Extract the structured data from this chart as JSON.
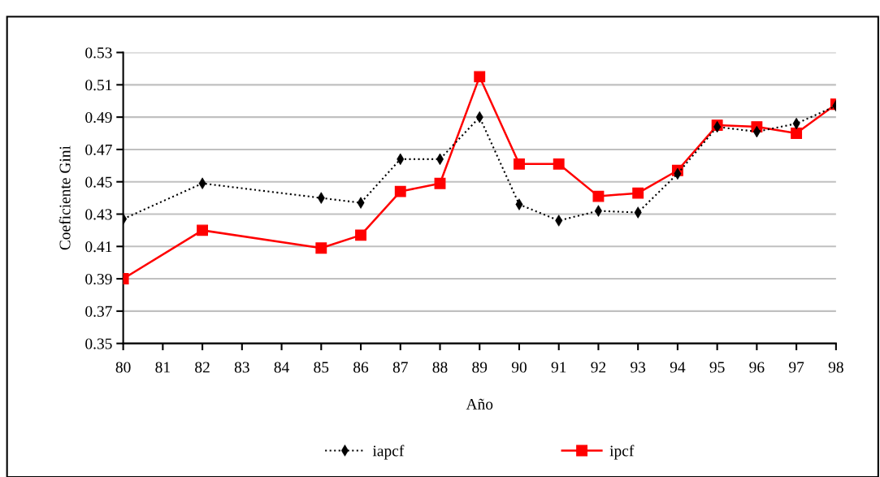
{
  "chart_data": {
    "type": "line",
    "xlabel": "Año",
    "ylabel": "Coeficiente Gini",
    "xlim": [
      80,
      98
    ],
    "xticks": [
      80,
      81,
      82,
      83,
      84,
      85,
      86,
      87,
      88,
      89,
      90,
      91,
      92,
      93,
      94,
      95,
      96,
      97,
      98
    ],
    "ylim": [
      0.35,
      0.53
    ],
    "yticks": [
      0.35,
      0.37,
      0.39,
      0.41,
      0.43,
      0.45,
      0.47,
      0.49,
      0.51,
      0.53
    ],
    "grid": "y",
    "legend": "bottom",
    "series": [
      {
        "name": "iapcf",
        "color": "#000000",
        "marker": "diamond",
        "line_style": "dotted",
        "x": [
          80,
          82,
          85,
          86,
          87,
          88,
          89,
          90,
          91,
          92,
          93,
          94,
          95,
          96,
          97,
          98
        ],
        "values": [
          0.427,
          0.449,
          0.44,
          0.437,
          0.464,
          0.464,
          0.49,
          0.436,
          0.426,
          0.432,
          0.431,
          0.455,
          0.484,
          0.481,
          0.486,
          0.497
        ]
      },
      {
        "name": "ipcf",
        "color": "#ff0000",
        "marker": "square",
        "line_style": "solid",
        "x": [
          80,
          82,
          85,
          86,
          87,
          88,
          89,
          90,
          91,
          92,
          93,
          94,
          95,
          96,
          97,
          98
        ],
        "values": [
          0.39,
          0.42,
          0.409,
          0.417,
          0.444,
          0.449,
          0.515,
          0.461,
          0.461,
          0.441,
          0.443,
          0.457,
          0.485,
          0.484,
          0.48,
          0.498
        ]
      }
    ]
  }
}
